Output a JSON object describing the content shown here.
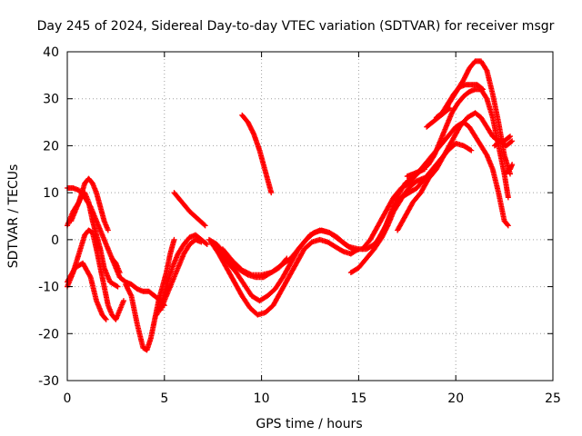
{
  "chart_data": {
    "type": "scatter",
    "title": "Day 245 of 2024, Sidereal Day-to-day VTEC variation (SDTVAR) for receiver msgr",
    "xlabel": "GPS time / hours",
    "ylabel": "SDTVAR / TECUs",
    "xlim": [
      0,
      25
    ],
    "ylim": [
      -30,
      40
    ],
    "xticks": [
      0,
      5,
      10,
      15,
      20,
      25
    ],
    "yticks": [
      -30,
      -20,
      -10,
      0,
      10,
      20,
      30,
      40
    ],
    "grid": true,
    "marker": "plus",
    "color": "#ff0000",
    "series": [
      {
        "points": [
          [
            0,
            11
          ],
          [
            0.3,
            11
          ],
          [
            0.6,
            10.5
          ],
          [
            0.9,
            9
          ],
          [
            1.2,
            7
          ],
          [
            1.5,
            4
          ],
          [
            1.8,
            1
          ],
          [
            2.1,
            -2
          ],
          [
            2.4,
            -5
          ],
          [
            2.7,
            -8
          ],
          [
            3.0,
            -9
          ],
          [
            3.3,
            -9.5
          ],
          [
            3.6,
            -10.5
          ],
          [
            3.9,
            -11
          ],
          [
            4.2,
            -11
          ],
          [
            4.5,
            -12
          ],
          [
            4.8,
            -13
          ],
          [
            5.0,
            -14
          ]
        ]
      },
      {
        "points": [
          [
            0,
            -10
          ],
          [
            0.3,
            -7
          ],
          [
            0.6,
            -3
          ],
          [
            0.9,
            1
          ],
          [
            1.1,
            2
          ],
          [
            1.3,
            1.5
          ],
          [
            1.5,
            -2
          ],
          [
            1.7,
            -6
          ],
          [
            1.9,
            -10
          ],
          [
            2.1,
            -14
          ],
          [
            2.3,
            -16
          ],
          [
            2.5,
            -17
          ],
          [
            2.7,
            -15
          ],
          [
            2.9,
            -13
          ]
        ]
      },
      {
        "points": [
          [
            0,
            -9
          ],
          [
            0.4,
            -6
          ],
          [
            0.8,
            -5
          ],
          [
            1.2,
            -8
          ],
          [
            1.5,
            -13
          ],
          [
            1.8,
            -16
          ],
          [
            2.0,
            -17
          ]
        ]
      },
      {
        "points": [
          [
            0,
            3
          ],
          [
            0.3,
            6
          ],
          [
            0.6,
            8
          ],
          [
            0.9,
            12
          ],
          [
            1.1,
            13
          ],
          [
            1.3,
            12
          ],
          [
            1.5,
            10
          ],
          [
            1.7,
            7
          ],
          [
            1.9,
            4
          ],
          [
            2.1,
            2
          ]
        ]
      },
      {
        "points": [
          [
            0.2,
            4
          ],
          [
            0.5,
            7
          ],
          [
            0.7,
            9
          ],
          [
            0.9,
            10
          ],
          [
            1.1,
            8
          ],
          [
            1.3,
            4
          ],
          [
            1.5,
            1
          ],
          [
            1.7,
            -2
          ],
          [
            1.9,
            -6
          ],
          [
            2.2,
            -9
          ],
          [
            2.6,
            -10
          ]
        ]
      },
      {
        "points": [
          [
            3.0,
            -9.5
          ],
          [
            3.3,
            -12
          ],
          [
            3.6,
            -18
          ],
          [
            3.9,
            -23
          ],
          [
            4.1,
            -23.5
          ],
          [
            4.3,
            -21
          ],
          [
            4.5,
            -17
          ],
          [
            4.7,
            -13
          ],
          [
            4.9,
            -10
          ],
          [
            5.1,
            -7
          ],
          [
            5.3,
            -3
          ],
          [
            5.5,
            0
          ]
        ]
      },
      {
        "points": [
          [
            4.6,
            -16
          ],
          [
            4.9,
            -13
          ],
          [
            5.1,
            -10
          ],
          [
            5.4,
            -6
          ],
          [
            5.7,
            -3
          ],
          [
            6.0,
            -1
          ],
          [
            6.3,
            0.5
          ],
          [
            6.6,
            1
          ],
          [
            6.9,
            0
          ],
          [
            7.2,
            -1
          ]
        ]
      },
      {
        "points": [
          [
            4.8,
            -15
          ],
          [
            5.2,
            -11
          ],
          [
            5.6,
            -7
          ],
          [
            6.0,
            -3
          ],
          [
            6.3,
            -1
          ],
          [
            6.6,
            0
          ],
          [
            6.9,
            -0.5
          ]
        ]
      },
      {
        "points": [
          [
            5.5,
            10
          ],
          [
            5.9,
            8
          ],
          [
            6.3,
            6
          ],
          [
            6.7,
            4.5
          ],
          [
            7.1,
            3
          ]
        ]
      },
      {
        "points": [
          [
            7.3,
            0
          ],
          [
            7.7,
            -1
          ],
          [
            8.1,
            -3
          ],
          [
            8.5,
            -5
          ],
          [
            8.9,
            -6.5
          ],
          [
            9.3,
            -7.5
          ],
          [
            9.7,
            -8
          ],
          [
            10.1,
            -8
          ],
          [
            10.5,
            -7
          ],
          [
            10.9,
            -6
          ],
          [
            11.3,
            -4
          ]
        ]
      },
      {
        "points": [
          [
            7.4,
            -0.5
          ],
          [
            7.8,
            -3
          ],
          [
            8.2,
            -6
          ],
          [
            8.6,
            -9
          ],
          [
            9.0,
            -12
          ],
          [
            9.4,
            -14.5
          ],
          [
            9.8,
            -16
          ],
          [
            10.2,
            -15.5
          ],
          [
            10.6,
            -14
          ],
          [
            11.0,
            -11
          ],
          [
            11.4,
            -8
          ],
          [
            11.8,
            -5
          ],
          [
            12.2,
            -2
          ],
          [
            12.6,
            -0.5
          ],
          [
            13.0,
            0
          ],
          [
            13.4,
            -0.5
          ],
          [
            13.8,
            -1.5
          ],
          [
            14.2,
            -2.5
          ],
          [
            14.6,
            -3
          ]
        ]
      },
      {
        "points": [
          [
            7.5,
            -1
          ],
          [
            7.9,
            -3
          ],
          [
            8.3,
            -5
          ],
          [
            8.7,
            -7
          ],
          [
            9.1,
            -9.5
          ],
          [
            9.5,
            -12
          ],
          [
            9.9,
            -13
          ],
          [
            10.3,
            -12
          ],
          [
            10.7,
            -10.5
          ],
          [
            11.1,
            -8
          ],
          [
            11.5,
            -5
          ],
          [
            11.9,
            -2
          ],
          [
            12.3,
            0
          ],
          [
            12.7,
            1.5
          ],
          [
            13.1,
            2
          ],
          [
            13.5,
            1.5
          ],
          [
            13.9,
            0.5
          ],
          [
            14.3,
            -1
          ],
          [
            14.7,
            -2
          ]
        ]
      },
      {
        "points": [
          [
            8.0,
            -2
          ],
          [
            8.5,
            -4.5
          ],
          [
            9.0,
            -6.5
          ],
          [
            9.5,
            -7.5
          ],
          [
            10.0,
            -7.5
          ],
          [
            10.5,
            -7
          ],
          [
            11.0,
            -5.5
          ],
          [
            11.5,
            -4
          ],
          [
            12.0,
            -1.5
          ],
          [
            12.5,
            1
          ],
          [
            13.0,
            2
          ],
          [
            13.5,
            1.5
          ],
          [
            14.0,
            0
          ],
          [
            14.5,
            -1.5
          ],
          [
            15.0,
            -2
          ]
        ]
      },
      {
        "points": [
          [
            9.0,
            26.5
          ],
          [
            9.3,
            25
          ],
          [
            9.6,
            22.5
          ],
          [
            9.9,
            19
          ],
          [
            10.2,
            14.5
          ],
          [
            10.5,
            10
          ]
        ]
      },
      {
        "points": [
          [
            14.6,
            -7
          ],
          [
            15.0,
            -6
          ],
          [
            15.4,
            -4
          ],
          [
            15.8,
            -2
          ],
          [
            16.2,
            0.5
          ],
          [
            16.5,
            3
          ],
          [
            16.8,
            6
          ],
          [
            17.1,
            8
          ],
          [
            17.4,
            10
          ],
          [
            17.7,
            11.5
          ],
          [
            18.0,
            12.5
          ],
          [
            18.3,
            13
          ],
          [
            18.6,
            13.5
          ]
        ]
      },
      {
        "points": [
          [
            14.6,
            -3
          ],
          [
            15.0,
            -2
          ],
          [
            15.4,
            -2
          ],
          [
            15.8,
            -1
          ],
          [
            16.2,
            1
          ],
          [
            16.5,
            4
          ],
          [
            16.8,
            7
          ],
          [
            17.1,
            10
          ],
          [
            17.4,
            12
          ],
          [
            17.7,
            13
          ],
          [
            18.0,
            14
          ],
          [
            18.3,
            15
          ],
          [
            18.6,
            16
          ],
          [
            18.9,
            18
          ],
          [
            19.2,
            21
          ],
          [
            19.5,
            24
          ],
          [
            19.8,
            27
          ],
          [
            20.1,
            29
          ],
          [
            20.4,
            30.5
          ],
          [
            20.7,
            31.5
          ],
          [
            21.0,
            32
          ],
          [
            21.3,
            32
          ],
          [
            21.6,
            30
          ],
          [
            21.9,
            26
          ],
          [
            22.2,
            20
          ],
          [
            22.5,
            14
          ],
          [
            22.7,
            9
          ]
        ]
      },
      {
        "points": [
          [
            15.2,
            -2
          ],
          [
            15.6,
            0
          ],
          [
            16.0,
            3
          ],
          [
            16.4,
            6
          ],
          [
            16.8,
            9
          ],
          [
            17.2,
            11
          ],
          [
            17.6,
            12
          ],
          [
            18.0,
            14
          ],
          [
            18.4,
            16
          ],
          [
            18.8,
            18
          ],
          [
            19.2,
            20
          ],
          [
            19.6,
            22
          ],
          [
            20.0,
            24
          ],
          [
            20.4,
            25
          ],
          [
            20.7,
            24
          ],
          [
            21.0,
            22
          ],
          [
            21.3,
            20
          ],
          [
            21.6,
            18
          ],
          [
            21.9,
            15
          ],
          [
            22.2,
            10
          ],
          [
            22.5,
            4
          ],
          [
            22.7,
            3
          ]
        ]
      },
      {
        "points": [
          [
            16.0,
            0
          ],
          [
            16.4,
            3
          ],
          [
            16.8,
            7
          ],
          [
            17.2,
            9
          ],
          [
            17.6,
            10
          ],
          [
            18.0,
            11
          ],
          [
            18.4,
            13
          ],
          [
            18.8,
            15
          ],
          [
            19.2,
            17
          ],
          [
            19.6,
            19
          ],
          [
            20.0,
            20.5
          ],
          [
            20.4,
            20
          ],
          [
            20.8,
            19
          ]
        ]
      },
      {
        "points": [
          [
            17.0,
            2
          ],
          [
            17.4,
            5
          ],
          [
            17.8,
            8
          ],
          [
            18.2,
            10
          ],
          [
            18.6,
            13
          ],
          [
            19.0,
            15
          ],
          [
            19.4,
            18
          ],
          [
            19.8,
            21
          ],
          [
            20.2,
            24
          ],
          [
            20.6,
            26
          ],
          [
            21.0,
            27
          ],
          [
            21.3,
            26
          ],
          [
            21.6,
            24
          ],
          [
            21.9,
            22
          ],
          [
            22.2,
            21
          ],
          [
            22.5,
            21
          ],
          [
            22.8,
            22
          ]
        ]
      },
      {
        "points": [
          [
            19.5,
            28
          ],
          [
            19.8,
            30
          ],
          [
            20.1,
            32
          ],
          [
            20.4,
            34
          ],
          [
            20.7,
            36.5
          ],
          [
            21.0,
            38
          ],
          [
            21.3,
            38
          ],
          [
            21.6,
            36
          ],
          [
            21.9,
            31
          ],
          [
            22.2,
            25
          ],
          [
            22.5,
            18
          ],
          [
            22.8,
            14
          ]
        ]
      },
      {
        "points": [
          [
            19.0,
            26
          ],
          [
            19.3,
            27
          ],
          [
            19.6,
            29
          ],
          [
            19.9,
            31
          ],
          [
            20.2,
            32.5
          ],
          [
            20.5,
            33
          ],
          [
            20.8,
            33
          ],
          [
            21.1,
            33
          ],
          [
            21.4,
            32
          ]
        ]
      },
      {
        "points": [
          [
            18.5,
            24
          ],
          [
            18.8,
            25
          ],
          [
            19.1,
            26
          ],
          [
            19.4,
            27
          ],
          [
            19.7,
            28
          ]
        ]
      },
      {
        "points": [
          [
            22.0,
            20
          ],
          [
            22.3,
            21
          ],
          [
            22.6,
            20
          ],
          [
            22.9,
            21
          ]
        ]
      },
      {
        "points": [
          [
            2.3,
            -4
          ],
          [
            2.5,
            -5
          ],
          [
            2.7,
            -7
          ]
        ]
      },
      {
        "points": [
          [
            17.5,
            13.5
          ],
          [
            17.8,
            14
          ],
          [
            18.1,
            14.5
          ],
          [
            18.4,
            15
          ]
        ]
      },
      {
        "points": [
          [
            22.5,
            14
          ],
          [
            22.8,
            15
          ],
          [
            22.9,
            16
          ]
        ]
      }
    ]
  }
}
